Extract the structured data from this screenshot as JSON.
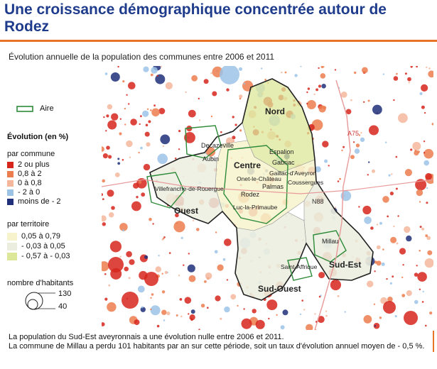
{
  "title": "Une croissance démographique concentrée autour de Rodez",
  "subtitle": "Évolution annuelle de la population des communes entre 2006 et 2011",
  "legend": {
    "aire": "Aire",
    "evolution_title": "Évolution (en %)",
    "par_commune": "par commune",
    "commune_classes": [
      {
        "label": "2 ou plus",
        "color": "#d6261c"
      },
      {
        "label": "0,8 à 2",
        "color": "#ec7d4f"
      },
      {
        "label": "0 à 0,8",
        "color": "#f4b79c"
      },
      {
        "label": "- 2 à 0",
        "color": "#9cc3e6"
      },
      {
        "label": "moins de - 2",
        "color": "#1f2f7a"
      }
    ],
    "par_territoire": "par territoire",
    "territoire_classes": [
      {
        "label": "0,05 à 0,79",
        "color": "#f7f3cd"
      },
      {
        "label": "- 0,03 à 0,05",
        "color": "#ebeedf"
      },
      {
        "label": "- 0,57 à - 0,03",
        "color": "#dde79a"
      }
    ],
    "habitants_title": "nombre d'habitants",
    "habitants_values": [
      "130",
      "40"
    ]
  },
  "map": {
    "territories": [
      "Nord",
      "Centre",
      "Ouest",
      "Sud-Ouest",
      "Sud-Est"
    ],
    "towns": [
      "Decazeville",
      "Aubin",
      "Villefranche-de-Rouergue",
      "Espalion",
      "Gabriac",
      "Gaillac-d'Aveyron",
      "Coussergues",
      "Palmas",
      "Onet-le-Château",
      "Rodez",
      "Luc-la-Primaube",
      "Millau",
      "Saint-Affrique"
    ],
    "roads": [
      "A75",
      "N88"
    ]
  },
  "notes": [
    "La population du Sud-Est aveyronnais a une évolution nulle entre 2006 et 2011.",
    "La commune de Millau a perdu 101 habitants par an sur cette période, soit un taux d'évolution annuel moyen de - 0,5 %."
  ]
}
